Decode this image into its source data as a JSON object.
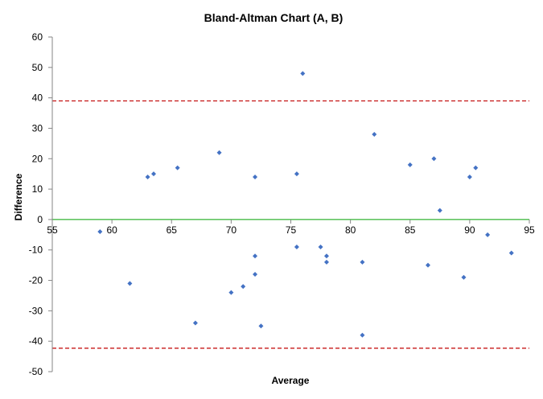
{
  "chart_data": {
    "type": "scatter",
    "title": "Bland-Altman Chart (A, B)",
    "xlabel": "Average",
    "ylabel": "Difference",
    "xlim": [
      55,
      95
    ],
    "ylim": [
      -50,
      60
    ],
    "x_ticks": [
      55,
      60,
      65,
      70,
      75,
      80,
      85,
      90,
      95
    ],
    "y_ticks": [
      60,
      50,
      40,
      30,
      20,
      10,
      0,
      -10,
      -20,
      -30,
      -40,
      -50
    ],
    "grid": false,
    "legend": "none",
    "colors": {
      "points": "#4472c4",
      "limit_lines": "#c00000",
      "zero_line": "#00a000",
      "axis": "#868686"
    },
    "upper_limit": 39,
    "lower_limit": -42.3,
    "zero_line": 0,
    "points": [
      {
        "x": 59,
        "y": -4
      },
      {
        "x": 61.5,
        "y": -21
      },
      {
        "x": 63,
        "y": 14
      },
      {
        "x": 63.5,
        "y": 15
      },
      {
        "x": 65.5,
        "y": 17
      },
      {
        "x": 67,
        "y": -34
      },
      {
        "x": 69,
        "y": 22
      },
      {
        "x": 70,
        "y": -24
      },
      {
        "x": 71,
        "y": -22
      },
      {
        "x": 72,
        "y": 14
      },
      {
        "x": 72,
        "y": -12
      },
      {
        "x": 72,
        "y": -18
      },
      {
        "x": 72.5,
        "y": -35
      },
      {
        "x": 75.5,
        "y": 15
      },
      {
        "x": 75.5,
        "y": -9
      },
      {
        "x": 76,
        "y": 48
      },
      {
        "x": 77.5,
        "y": -9
      },
      {
        "x": 78,
        "y": -12
      },
      {
        "x": 78,
        "y": -14
      },
      {
        "x": 81,
        "y": -14
      },
      {
        "x": 81,
        "y": -38
      },
      {
        "x": 82,
        "y": 28
      },
      {
        "x": 85,
        "y": 18
      },
      {
        "x": 86.5,
        "y": -15
      },
      {
        "x": 87,
        "y": 20
      },
      {
        "x": 87.5,
        "y": 3
      },
      {
        "x": 89.5,
        "y": -19
      },
      {
        "x": 90,
        "y": 14
      },
      {
        "x": 90.5,
        "y": 17
      },
      {
        "x": 91.5,
        "y": -5
      },
      {
        "x": 93.5,
        "y": -11
      }
    ]
  }
}
